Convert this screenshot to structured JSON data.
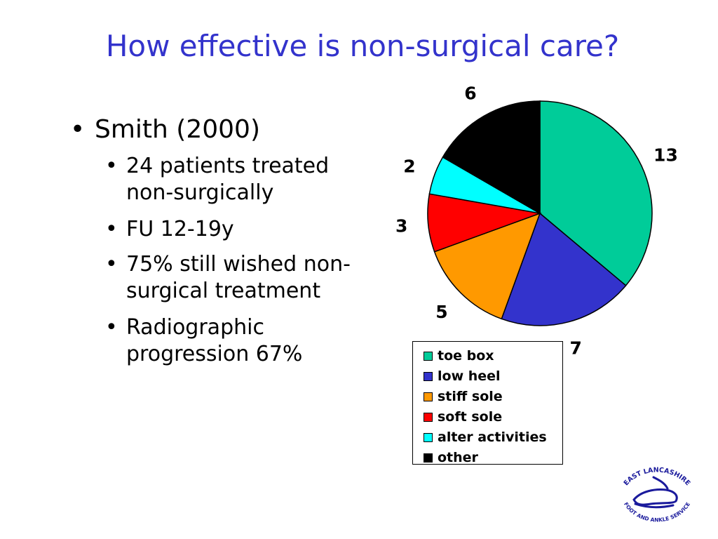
{
  "slide": {
    "title": "How effective is non-surgical care?",
    "bullets": [
      {
        "bullet": "•",
        "text": "Smith (2000)"
      }
    ],
    "sub_bullets": [
      {
        "bullet": "•",
        "lines": [
          "24 patients treated",
          "non-surgically"
        ]
      },
      {
        "bullet": "•",
        "lines": [
          "FU 12-19y"
        ]
      },
      {
        "bullet": "•",
        "lines": [
          "75% still wished non-",
          "surgical treatment"
        ]
      },
      {
        "bullet": "•",
        "lines": [
          "Radiographic",
          "progression 67%"
        ]
      }
    ]
  },
  "chart_data": {
    "type": "pie",
    "categories": [
      "toe box",
      "low heel",
      "stiff sole",
      "soft sole",
      "alter activities",
      "other"
    ],
    "values": [
      13,
      7,
      5,
      3,
      2,
      6
    ],
    "data_labels": [
      "13",
      "7",
      "5",
      "3",
      "2",
      "6"
    ],
    "colors": [
      "#00CC99",
      "#3333CC",
      "#FF9900",
      "#FF0000",
      "#00FFFF",
      "#000000"
    ],
    "start_angle_deg": 0,
    "direction": "clockwise",
    "legend_position": "bottom"
  },
  "logo": {
    "text_top": "EAST LANCASHIRE",
    "text_bottom": "FOOT AND ANKLE SERVICE",
    "icon": "foot-icon",
    "color": "#1a1a9c"
  }
}
